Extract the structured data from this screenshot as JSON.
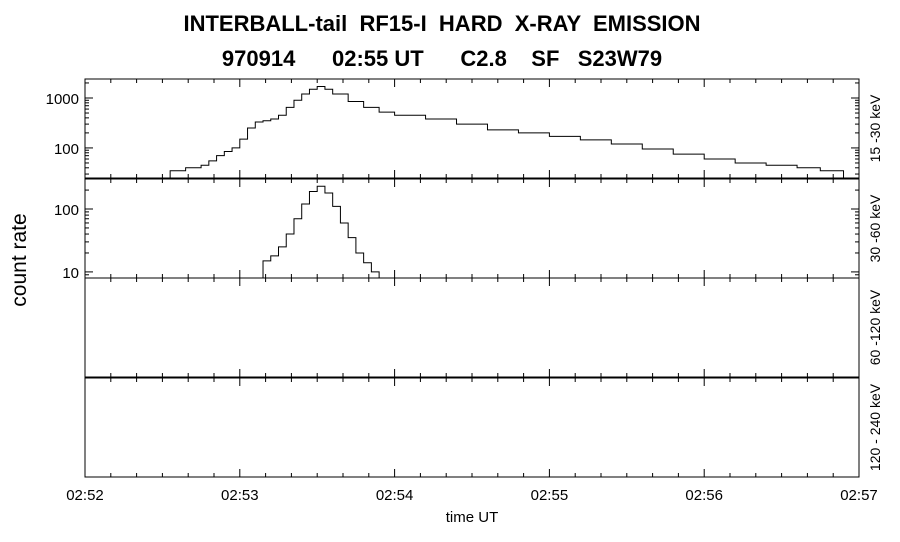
{
  "chart_data": {
    "type": "line",
    "style": "step-histogram",
    "title": "INTERBALL-tail  RF15-I  HARD  X-RAY  EMISSION",
    "subtitle": "970914      02:55 UT      C2.8    SF   S23W79",
    "xlabel": "time UT",
    "ylabel": "count rate",
    "x_ticks": [
      "02:52",
      "02:53",
      "02:54",
      "02:55",
      "02:56",
      "02:57"
    ],
    "x_range_minutes": [
      0,
      5
    ],
    "x_origin": "02:52",
    "grid": false,
    "panels": [
      {
        "band": "15 -30 keV",
        "yscale": "log",
        "ylim": [
          25,
          2400
        ],
        "y_ticks": [
          100,
          1000
        ],
        "y_tick_labels": [
          "100",
          "1000"
        ],
        "series": {
          "x_minutes": [
            0.55,
            0.65,
            0.75,
            0.8,
            0.85,
            0.9,
            0.95,
            1.0,
            1.05,
            1.1,
            1.15,
            1.2,
            1.25,
            1.3,
            1.35,
            1.4,
            1.45,
            1.5,
            1.55,
            1.6,
            1.7,
            1.8,
            1.9,
            2.0,
            2.2,
            2.4,
            2.6,
            2.8,
            3.0,
            3.2,
            3.4,
            3.6,
            3.8,
            4.0,
            4.2,
            4.4,
            4.6,
            4.75
          ],
          "values": [
            35,
            40,
            45,
            55,
            70,
            85,
            100,
            150,
            250,
            330,
            350,
            380,
            450,
            650,
            900,
            1200,
            1500,
            1700,
            1500,
            1200,
            850,
            650,
            520,
            450,
            380,
            300,
            230,
            200,
            170,
            145,
            120,
            95,
            75,
            60,
            50,
            45,
            40,
            35
          ]
        }
      },
      {
        "band": "30 -60 keV",
        "yscale": "log",
        "ylim": [
          8,
          300
        ],
        "y_ticks": [
          10,
          100
        ],
        "y_tick_labels": [
          "10",
          "100"
        ],
        "series": {
          "x_minutes": [
            1.15,
            1.2,
            1.25,
            1.3,
            1.35,
            1.4,
            1.45,
            1.5,
            1.55,
            1.6,
            1.65,
            1.7,
            1.75,
            1.8,
            1.85
          ],
          "values": [
            15,
            18,
            25,
            40,
            70,
            120,
            190,
            230,
            180,
            110,
            60,
            35,
            20,
            14,
            10
          ]
        }
      },
      {
        "band": "60 -120 keV",
        "yscale": "log",
        "ylim": [
          1,
          10
        ],
        "y_ticks": [],
        "y_tick_labels": [],
        "series": {
          "x_minutes": [],
          "values": []
        }
      },
      {
        "band": "120 - 240 keV",
        "yscale": "log",
        "ylim": [
          1,
          10
        ],
        "y_ticks": [],
        "y_tick_labels": [],
        "series": {
          "x_minutes": [],
          "values": []
        }
      }
    ]
  }
}
